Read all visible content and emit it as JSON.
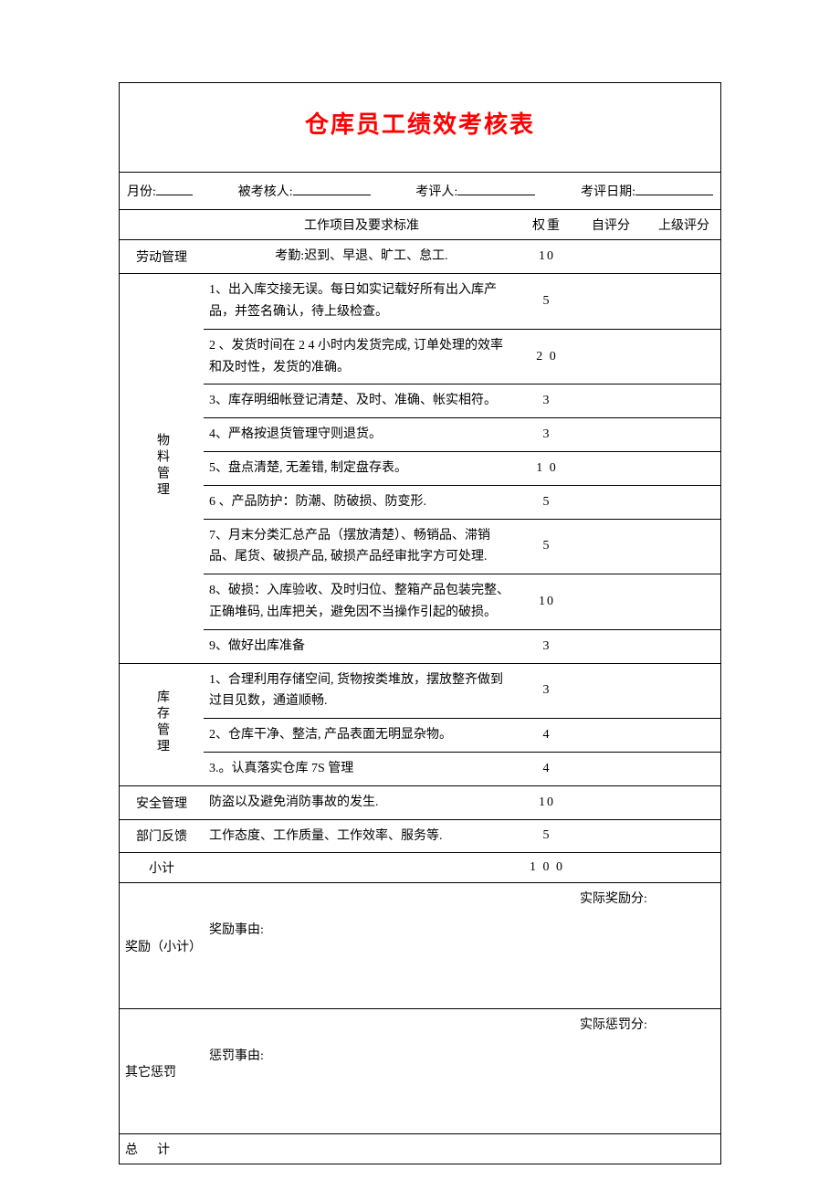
{
  "title": "仓库员工绩效考核表",
  "title_color": "#ff0000",
  "meta": {
    "month_label": "月份:",
    "assessee_label": "被考核人:",
    "assessor_label": "考评人:",
    "date_label": "考评日期:"
  },
  "headers": {
    "desc": "工作项目及要求标准",
    "weight": "权重",
    "self": "自评分",
    "sup": "上级评分"
  },
  "sections": [
    {
      "category": "劳动管理",
      "vertical": false,
      "rows": [
        {
          "desc": "考勤:迟到、早退、旷工、怠工.",
          "centered": true,
          "weight": "10"
        }
      ]
    },
    {
      "category": "物料管理",
      "vertical": true,
      "rows": [
        {
          "desc": "1、出入库交接无误。每日如实记载好所有出入库产品，并签名确认，待上级检查。",
          "weight": "5"
        },
        {
          "desc": "2 、发货时间在 2 4 小时内发货完成, 订单处理的效率和及时性，发货的准确。",
          "weight": "2 0"
        },
        {
          "desc": "3、库存明细帐登记清楚、及时、准确、帐实相符。",
          "weight": "3"
        },
        {
          "desc": "4、严格按退货管理守则退货。",
          "weight": "3"
        },
        {
          "desc": "5、盘点清楚, 无差错, 制定盘存表。",
          "weight": "1 0"
        },
        {
          "desc": "6 、产品防护：防潮、防破损、防变形.",
          "weight": "5"
        },
        {
          "desc": "7、月末分类汇总产品（摆放清楚）、畅销品、滞销品、尾货、破损产品, 破损产品经审批字方可处理.",
          "weight": "5"
        },
        {
          "desc": "8、破损：入库验收、及时归位、整箱产品包装完整、正确堆码, 出库把关，避免因不当操作引起的破损。",
          "weight": "10"
        },
        {
          "desc": "9、做好出库准备",
          "weight": "3"
        }
      ]
    },
    {
      "category": "库存管理",
      "vertical": true,
      "rows": [
        {
          "desc": "1、合理利用存储空间, 货物按类堆放，摆放整齐做到过目见数，通道顺畅.",
          "weight": "3"
        },
        {
          "desc": "2、仓库干净、整洁, 产品表面无明显杂物。",
          "weight": "4"
        },
        {
          "desc": "3.。认真落实仓库 7S 管理",
          "weight": "4"
        }
      ]
    },
    {
      "category": "安全管理",
      "vertical": false,
      "rows": [
        {
          "desc": "防盗以及避免消防事故的发生.",
          "weight": "10"
        }
      ]
    },
    {
      "category": "部门反馈",
      "vertical": false,
      "rows": [
        {
          "desc": "工作态度、工作质量、工作效率、服务等.",
          "weight": "5"
        }
      ]
    }
  ],
  "subtotal": {
    "label": "小计",
    "value": "1 0 0"
  },
  "reward": {
    "label": "奖励（小计）",
    "actual_label": "实际奖励分:",
    "reason_label": "奖励事由:"
  },
  "penalty": {
    "label": "其它惩罚",
    "actual_label": "实际惩罚分:",
    "reason_label": "惩罚事由:"
  },
  "total_label": "总计",
  "font": {
    "body_size_pt": 11,
    "title_size_pt": 20
  },
  "colors": {
    "text": "#000000",
    "background": "#ffffff",
    "border": "#000000"
  }
}
